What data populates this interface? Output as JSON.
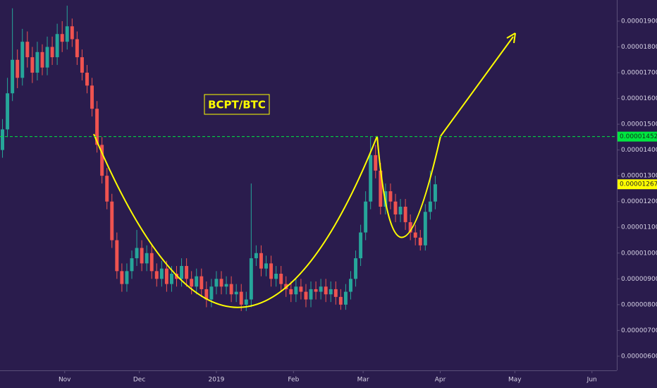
{
  "chart_data": {
    "type": "candlestick",
    "title": "BCPT/BTC",
    "up_color": "#26a69a",
    "down_color": "#ef5350",
    "xlim": [
      0,
      248
    ],
    "xticks": [
      {
        "value": 26,
        "label": "Nov"
      },
      {
        "value": 56,
        "label": "Dec"
      },
      {
        "value": 87,
        "label": "2019"
      },
      {
        "value": 118,
        "label": "Feb"
      },
      {
        "value": 146,
        "label": "Mar"
      },
      {
        "value": 177,
        "label": "Apr"
      },
      {
        "value": 207,
        "label": "May"
      },
      {
        "value": 238,
        "label": "Jun"
      }
    ],
    "ylim": [
      5.45e-06,
      1.982e-05
    ],
    "yticks": [
      {
        "value": 1.9e-05,
        "label": "0.00001900"
      },
      {
        "value": 1.8e-05,
        "label": "0.00001800"
      },
      {
        "value": 1.7e-05,
        "label": "0.00001700"
      },
      {
        "value": 1.6e-05,
        "label": "0.00001600"
      },
      {
        "value": 1.5e-05,
        "label": "0.00001500"
      },
      {
        "value": 1.4e-05,
        "label": "0.00001400"
      },
      {
        "value": 1.3e-05,
        "label": "0.00001300"
      },
      {
        "value": 1.2e-05,
        "label": "0.00001200"
      },
      {
        "value": 1.1e-05,
        "label": "0.00001100"
      },
      {
        "value": 1e-05,
        "label": "0.00001000"
      },
      {
        "value": 9e-06,
        "label": "0.00000900"
      },
      {
        "value": 8e-06,
        "label": "0.00000800"
      },
      {
        "value": 7e-06,
        "label": "0.00000700"
      },
      {
        "value": 6e-06,
        "label": "0.00000600"
      }
    ],
    "grid": false,
    "level": {
      "value": 1.452e-05,
      "label": "0.00001452",
      "color": "#00e640"
    },
    "last_price": {
      "value": 1.267e-05,
      "label": "0.00001267",
      "color": "#ffff00"
    },
    "x": [
      1,
      3,
      5,
      7,
      9,
      11,
      13,
      15,
      17,
      19,
      21,
      23,
      25,
      27,
      29,
      31,
      33,
      35,
      37,
      39,
      41,
      43,
      45,
      47,
      49,
      51,
      53,
      55,
      57,
      59,
      61,
      63,
      65,
      67,
      69,
      71,
      73,
      75,
      77,
      79,
      81,
      83,
      85,
      87,
      89,
      91,
      93,
      95,
      97,
      99,
      101,
      103,
      105,
      107,
      109,
      111,
      113,
      115,
      117,
      119,
      121,
      123,
      125,
      127,
      129,
      131,
      133,
      135,
      137,
      139,
      141,
      143,
      145,
      147,
      149,
      151,
      153,
      155,
      157,
      159,
      161,
      163,
      165,
      167,
      169,
      171,
      173,
      175
    ],
    "open": [
      1.4e-05,
      1.48e-05,
      1.62e-05,
      1.75e-05,
      1.68e-05,
      1.82e-05,
      1.76e-05,
      1.7e-05,
      1.78e-05,
      1.72e-05,
      1.8e-05,
      1.76e-05,
      1.85e-05,
      1.82e-05,
      1.88e-05,
      1.83e-05,
      1.76e-05,
      1.7e-05,
      1.65e-05,
      1.56e-05,
      1.42e-05,
      1.3e-05,
      1.2e-05,
      1.05e-05,
      9.3e-06,
      8.8e-06,
      9.3e-06,
      9.8e-06,
      1.02e-05,
      9.6e-06,
      1e-05,
      9.3e-06,
      9e-06,
      9.4e-06,
      8.8e-06,
      9.2e-06,
      9e-06,
      9.5e-06,
      9e-06,
      8.7e-06,
      9.1e-06,
      8.6e-06,
      8.2e-06,
      8.7e-06,
      9e-06,
      8.7e-06,
      8.8e-06,
      8.4e-06,
      8.5e-06,
      8e-06,
      8.2e-06,
      9.8e-06,
      1e-05,
      9.4e-06,
      9.6e-06,
      9e-06,
      9.2e-06,
      8.8e-06,
      8.6e-06,
      8.4e-06,
      8.7e-06,
      8.5e-06,
      8.2e-06,
      8.6e-06,
      8.5e-06,
      8.7e-06,
      8.4e-06,
      8.6e-06,
      8.3e-06,
      8e-06,
      8.5e-06,
      9e-06,
      9.8e-06,
      1.08e-05,
      1.2e-05,
      1.38e-05,
      1.32e-05,
      1.18e-05,
      1.24e-05,
      1.2e-05,
      1.15e-05,
      1.18e-05,
      1.12e-05,
      1.08e-05,
      1.06e-05,
      1.03e-05,
      1.16e-05,
      1.2e-05
    ],
    "high": [
      1.52e-05,
      1.68e-05,
      1.95e-05,
      1.79e-05,
      1.87e-05,
      1.86e-05,
      1.8e-05,
      1.82e-05,
      1.81e-05,
      1.84e-05,
      1.84e-05,
      1.89e-05,
      1.9e-05,
      1.96e-05,
      1.91e-05,
      1.86e-05,
      1.79e-05,
      1.73e-05,
      1.68e-05,
      1.59e-05,
      1.45e-05,
      1.33e-05,
      1.23e-05,
      1.08e-05,
      9.6e-06,
      9.6e-06,
      1.01e-05,
      1.09e-05,
      1.05e-05,
      1.03e-05,
      1.03e-05,
      9.6e-06,
      9.7e-06,
      9.7e-06,
      9.5e-06,
      9.5e-06,
      9.8e-06,
      9.8e-06,
      9.3e-06,
      9.4e-06,
      9.4e-06,
      8.9e-06,
      9e-06,
      9.3e-06,
      9.3e-06,
      9.1e-06,
      9.1e-06,
      8.8e-06,
      8.8e-06,
      8.5e-06,
      1.27e-05,
      1.03e-05,
      1.03e-05,
      9.9e-06,
      9.9e-06,
      9.5e-06,
      9.5e-06,
      9.1e-06,
      8.9e-06,
      9e-06,
      9e-06,
      8.8e-06,
      8.9e-06,
      8.9e-06,
      9e-06,
      9e-06,
      8.9e-06,
      8.9e-06,
      8.6e-06,
      8.8e-06,
      9.3e-06,
      1.01e-05,
      1.11e-05,
      1.24e-05,
      1.452e-05,
      1.42e-05,
      1.35e-05,
      1.27e-05,
      1.27e-05,
      1.23e-05,
      1.21e-05,
      1.21e-05,
      1.15e-05,
      1.11e-05,
      1.09e-05,
      1.19e-05,
      1.32e-05,
      1.3e-05
    ],
    "low": [
      1.37e-05,
      1.45e-05,
      1.59e-05,
      1.64e-05,
      1.65e-05,
      1.72e-05,
      1.66e-05,
      1.67e-05,
      1.69e-05,
      1.69e-05,
      1.73e-05,
      1.73e-05,
      1.78e-05,
      1.79e-05,
      1.8e-05,
      1.73e-05,
      1.67e-05,
      1.62e-05,
      1.53e-05,
      1.39e-05,
      1.27e-05,
      1.17e-05,
      1.02e-05,
      9e-06,
      8.5e-06,
      8.5e-06,
      9e-06,
      9.5e-06,
      9.3e-06,
      9.3e-06,
      9e-06,
      8.7e-06,
      8.7e-06,
      8.5e-06,
      8.5e-06,
      8.7e-06,
      8.7e-06,
      8.7e-06,
      8.4e-06,
      8.4e-06,
      8.3e-06,
      7.9e-06,
      7.9e-06,
      8.4e-06,
      8.4e-06,
      8.4e-06,
      8.1e-06,
      8.1e-06,
      7.75e-06,
      7.75e-06,
      7.9e-06,
      9.5e-06,
      9.1e-06,
      9.1e-06,
      8.7e-06,
      8.7e-06,
      8.5e-06,
      8.3e-06,
      8.1e-06,
      8.1e-06,
      8.2e-06,
      7.9e-06,
      7.9e-06,
      8.2e-06,
      8.2e-06,
      8.1e-06,
      8.1e-06,
      8e-06,
      7.8e-06,
      7.8e-06,
      8.2e-06,
      8.7e-06,
      9.5e-06,
      1.05e-05,
      1.17e-05,
      1.29e-05,
      1.15e-05,
      1.15e-05,
      1.17e-05,
      1.12e-05,
      1.12e-05,
      1.09e-05,
      1.05e-05,
      1.03e-05,
      1.01e-05,
      1.01e-05,
      1.13e-05,
      1.17e-05
    ],
    "close": [
      1.48e-05,
      1.62e-05,
      1.75e-05,
      1.68e-05,
      1.82e-05,
      1.76e-05,
      1.7e-05,
      1.78e-05,
      1.72e-05,
      1.8e-05,
      1.76e-05,
      1.85e-05,
      1.82e-05,
      1.88e-05,
      1.83e-05,
      1.76e-05,
      1.7e-05,
      1.65e-05,
      1.56e-05,
      1.42e-05,
      1.3e-05,
      1.2e-05,
      1.05e-05,
      9.3e-06,
      8.8e-06,
      9.3e-06,
      9.8e-06,
      1.02e-05,
      9.6e-06,
      1e-05,
      9.3e-06,
      9e-06,
      9.4e-06,
      8.8e-06,
      9.2e-06,
      9e-06,
      9.5e-06,
      9e-06,
      8.7e-06,
      9.1e-06,
      8.6e-06,
      8.2e-06,
      8.7e-06,
      9e-06,
      8.7e-06,
      8.8e-06,
      8.4e-06,
      8.5e-06,
      8e-06,
      8.2e-06,
      9.8e-06,
      1e-05,
      9.4e-06,
      9.6e-06,
      9e-06,
      9.2e-06,
      8.8e-06,
      8.6e-06,
      8.4e-06,
      8.7e-06,
      8.5e-06,
      8.2e-06,
      8.6e-06,
      8.5e-06,
      8.7e-06,
      8.4e-06,
      8.6e-06,
      8.3e-06,
      8e-06,
      8.5e-06,
      9e-06,
      9.8e-06,
      1.08e-05,
      1.2e-05,
      1.38e-05,
      1.32e-05,
      1.18e-05,
      1.24e-05,
      1.2e-05,
      1.15e-05,
      1.18e-05,
      1.12e-05,
      1.08e-05,
      1.06e-05,
      1.03e-05,
      1.16e-05,
      1.2e-05,
      1.267e-05
    ]
  }
}
